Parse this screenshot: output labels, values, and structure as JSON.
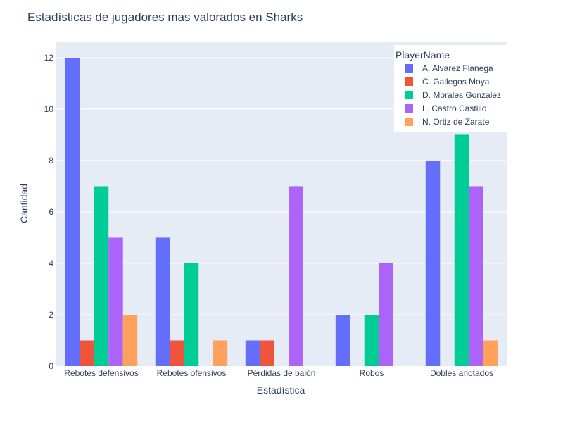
{
  "chart_data": {
    "type": "bar",
    "title": "Estadísticas de jugadores mas valorados en Sharks",
    "xlabel": "Estadística",
    "ylabel": "Cantidad",
    "ylim": [
      0,
      12.6
    ],
    "yticks": [
      0,
      2,
      4,
      6,
      8,
      10,
      12
    ],
    "grid": true,
    "legend_title": "PlayerName",
    "legend_position": "top-right",
    "categories": [
      "Rebotes defensivos",
      "Rebotes ofensivos",
      "Pérdidas de balón",
      "Robos",
      "Dobles anotados"
    ],
    "series": [
      {
        "name": "A. Alvarez Flanega",
        "color": "#636efa",
        "values": [
          12,
          5,
          1,
          2,
          8
        ]
      },
      {
        "name": "C. Gallegos Moya",
        "color": "#ef553b",
        "values": [
          1,
          1,
          1,
          0,
          0
        ]
      },
      {
        "name": "D. Morales Gonzalez",
        "color": "#00cc96",
        "values": [
          7,
          4,
          0,
          2,
          9
        ]
      },
      {
        "name": "L. Castro Castillo",
        "color": "#ab63fa",
        "values": [
          5,
          0,
          7,
          4,
          7
        ]
      },
      {
        "name": "N. Ortiz de Zarate",
        "color": "#ffa15a",
        "values": [
          2,
          1,
          0,
          0,
          1
        ]
      }
    ]
  }
}
